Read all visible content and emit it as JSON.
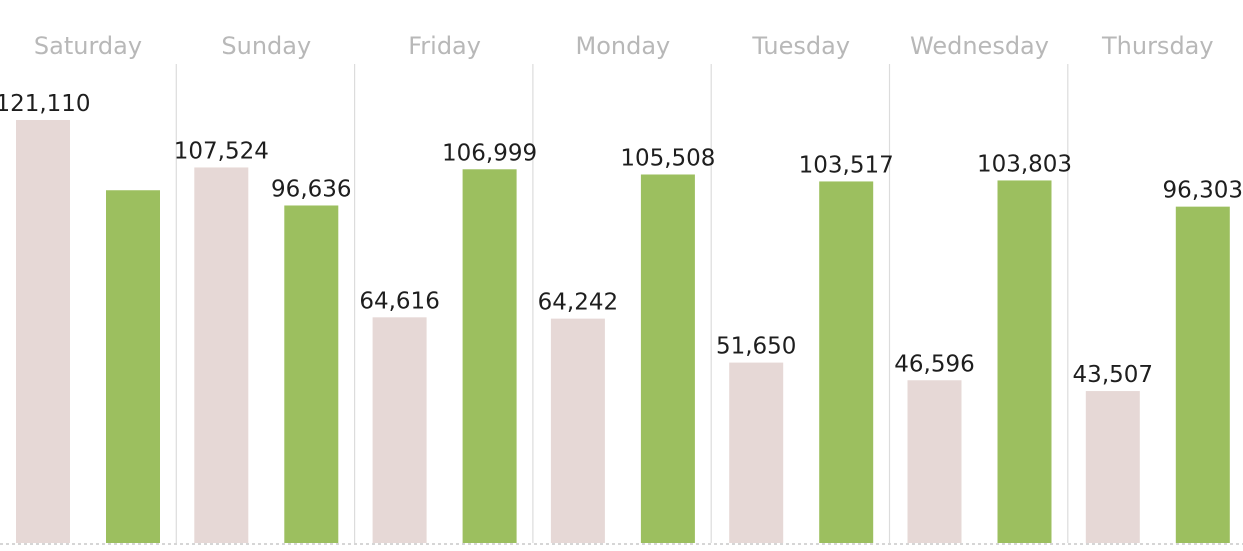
{
  "chart_data": {
    "type": "bar",
    "title": "",
    "xlabel": "",
    "ylabel": "",
    "categories": [
      "Saturday",
      "Sunday",
      "Friday",
      "Monday",
      "Tuesday",
      "Wednesday",
      "Thursday"
    ],
    "series": [
      {
        "values": [
          121110,
          null,
          64616,
          64242,
          51650,
          46596,
          43507
        ],
        "labels": [
          "121,110",
          "107,524",
          "64,616",
          "64,242",
          "51,650",
          "46,596",
          "43,507"
        ],
        "color": "#e6d8d6",
        "est_values": [
          121110,
          107524,
          64616,
          64242,
          51650,
          46596,
          43507
        ]
      },
      {
        "values": [
          null,
          96636,
          106999,
          105508,
          103517,
          103803,
          96303
        ],
        "labels": [
          "",
          "96,636",
          "106,999",
          "105,508",
          "103,517",
          "103,803",
          "96,303"
        ],
        "color": "#9cbf5f",
        "est_values": [
          101000,
          96636,
          106999,
          105508,
          103517,
          103803,
          96303
        ]
      }
    ],
    "ylim": [
      0,
      121110
    ],
    "grid": false,
    "legend": "none"
  }
}
